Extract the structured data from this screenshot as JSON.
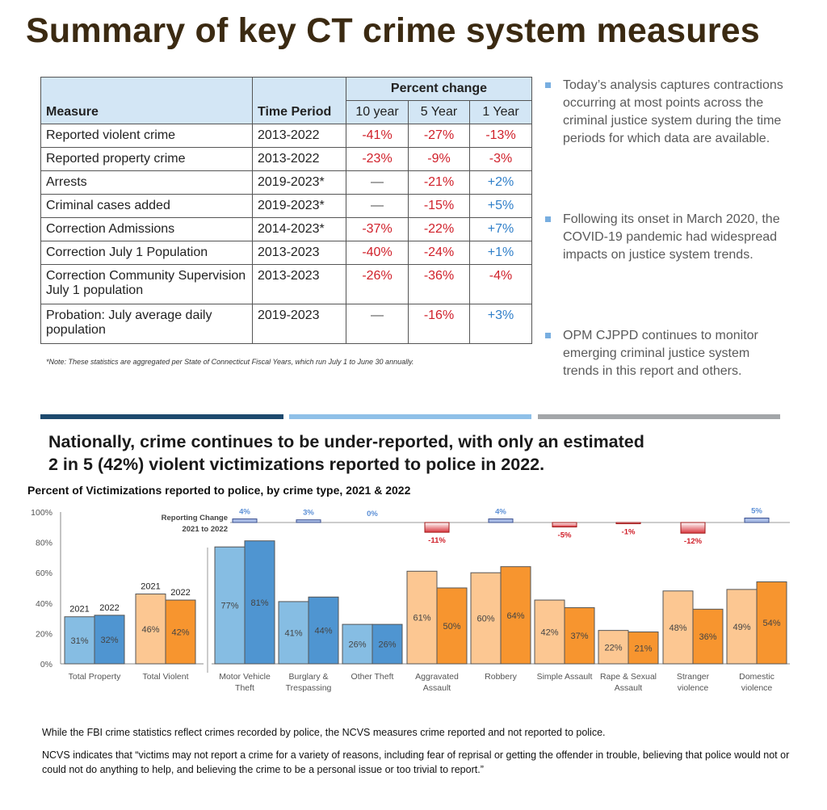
{
  "title": "Summary of key CT crime system measures",
  "table": {
    "headers": {
      "measure": "Measure",
      "time_period": "Time Period",
      "percent_change": "Percent change",
      "ten": "10 year",
      "five": "5 Year",
      "one": "1 Year"
    },
    "rows": [
      {
        "measure": "Reported violent crime",
        "period": "2013-2022",
        "ten": "-41%",
        "five": "-27%",
        "one": "-13%"
      },
      {
        "measure": "Reported property crime",
        "period": "2013-2022",
        "ten": "-23%",
        "five": "-9%",
        "one": "-3%"
      },
      {
        "measure": "Arrests",
        "period": "2019-2023*",
        "ten": "—",
        "five": "-21%",
        "one": "+2%"
      },
      {
        "measure": "Criminal cases added",
        "period": "2019-2023*",
        "ten": "—",
        "five": "-15%",
        "one": "+5%"
      },
      {
        "measure": "Correction Admissions",
        "period": "2014-2023*",
        "ten": "-37%",
        "five": "-22%",
        "one": "+7%"
      },
      {
        "measure": "Correction July 1 Population",
        "period": "2013-2023",
        "ten": "-40%",
        "five": "-24%",
        "one": "+1%"
      },
      {
        "measure": "Correction Community Supervision July 1 population",
        "period": "2013-2023",
        "ten": "-26%",
        "five": "-36%",
        "one": "-4%"
      },
      {
        "measure": "Probation: July average daily population",
        "period": "2019-2023",
        "ten": "—",
        "five": "-16%",
        "one": "+3%"
      }
    ],
    "note": "*Note: These statistics are aggregated per State of Connecticut Fiscal Years, which run July 1 to June 30 annually."
  },
  "bullets": [
    "Today’s analysis captures contractions occurring at most points across the criminal justice system during the time periods for which data are available.",
    "Following its onset in March 2020, the COVID-19 pandemic had widespread impacts on justice system trends.",
    "OPM CJPPD continues to monitor emerging criminal justice system trends in this report and others."
  ],
  "headline": [
    "Nationally, crime continues to be under-reported, with only an estimated",
    "2 in 5 (42%) violent victimizations reported to police in 2022."
  ],
  "chart_data": {
    "type": "bar",
    "title": "Percent of Victimizations reported to police, by crime type, 2021 & 2022",
    "categories": [
      "Total Property",
      "Total Violent",
      "Motor Vehicle Theft",
      "Burglary & Trespassing",
      "Other Theft",
      "Aggravated Assault",
      "Robbery",
      "Simple Assault",
      "Rape & Sexual Assault",
      "Stranger violence",
      "Domestic violence"
    ],
    "category_group": [
      "property",
      "violent",
      "property",
      "property",
      "property",
      "violent",
      "violent",
      "violent",
      "violent",
      "violent",
      "violent"
    ],
    "series": [
      {
        "name": "2021",
        "values": [
          31,
          46,
          77,
          41,
          26,
          61,
          60,
          42,
          22,
          48,
          49
        ]
      },
      {
        "name": "2022",
        "values": [
          32,
          42,
          81,
          44,
          26,
          50,
          64,
          37,
          21,
          36,
          54
        ]
      }
    ],
    "reporting_change": {
      "label": [
        "Reporting Change",
        "2021 to 2022"
      ],
      "values": [
        null,
        null,
        4,
        3,
        0,
        -11,
        4,
        -5,
        -1,
        -12,
        5
      ]
    },
    "yticks": [
      "0%",
      "20%",
      "40%",
      "60%",
      "80%",
      "100%"
    ],
    "ylim": [
      0,
      100
    ],
    "grid": false,
    "colors": {
      "property_2021": "#86bde3",
      "property_2022": "#4f95d1",
      "violent_2021": "#fcc792",
      "violent_2022": "#f7952f",
      "positive": "#5b8fd6",
      "negative": "#d0202a"
    }
  },
  "footer": [
    "While the FBI crime statistics reflect crimes recorded by police, the NCVS measures crime reported and not reported to police.",
    "NCVS indicates that “victims may not report a crime for a variety of reasons, including fear of reprisal or getting the offender in trouble, believing that police would not or could not do anything to help, and believing the crime to be a personal issue or too trivial to report.”"
  ]
}
